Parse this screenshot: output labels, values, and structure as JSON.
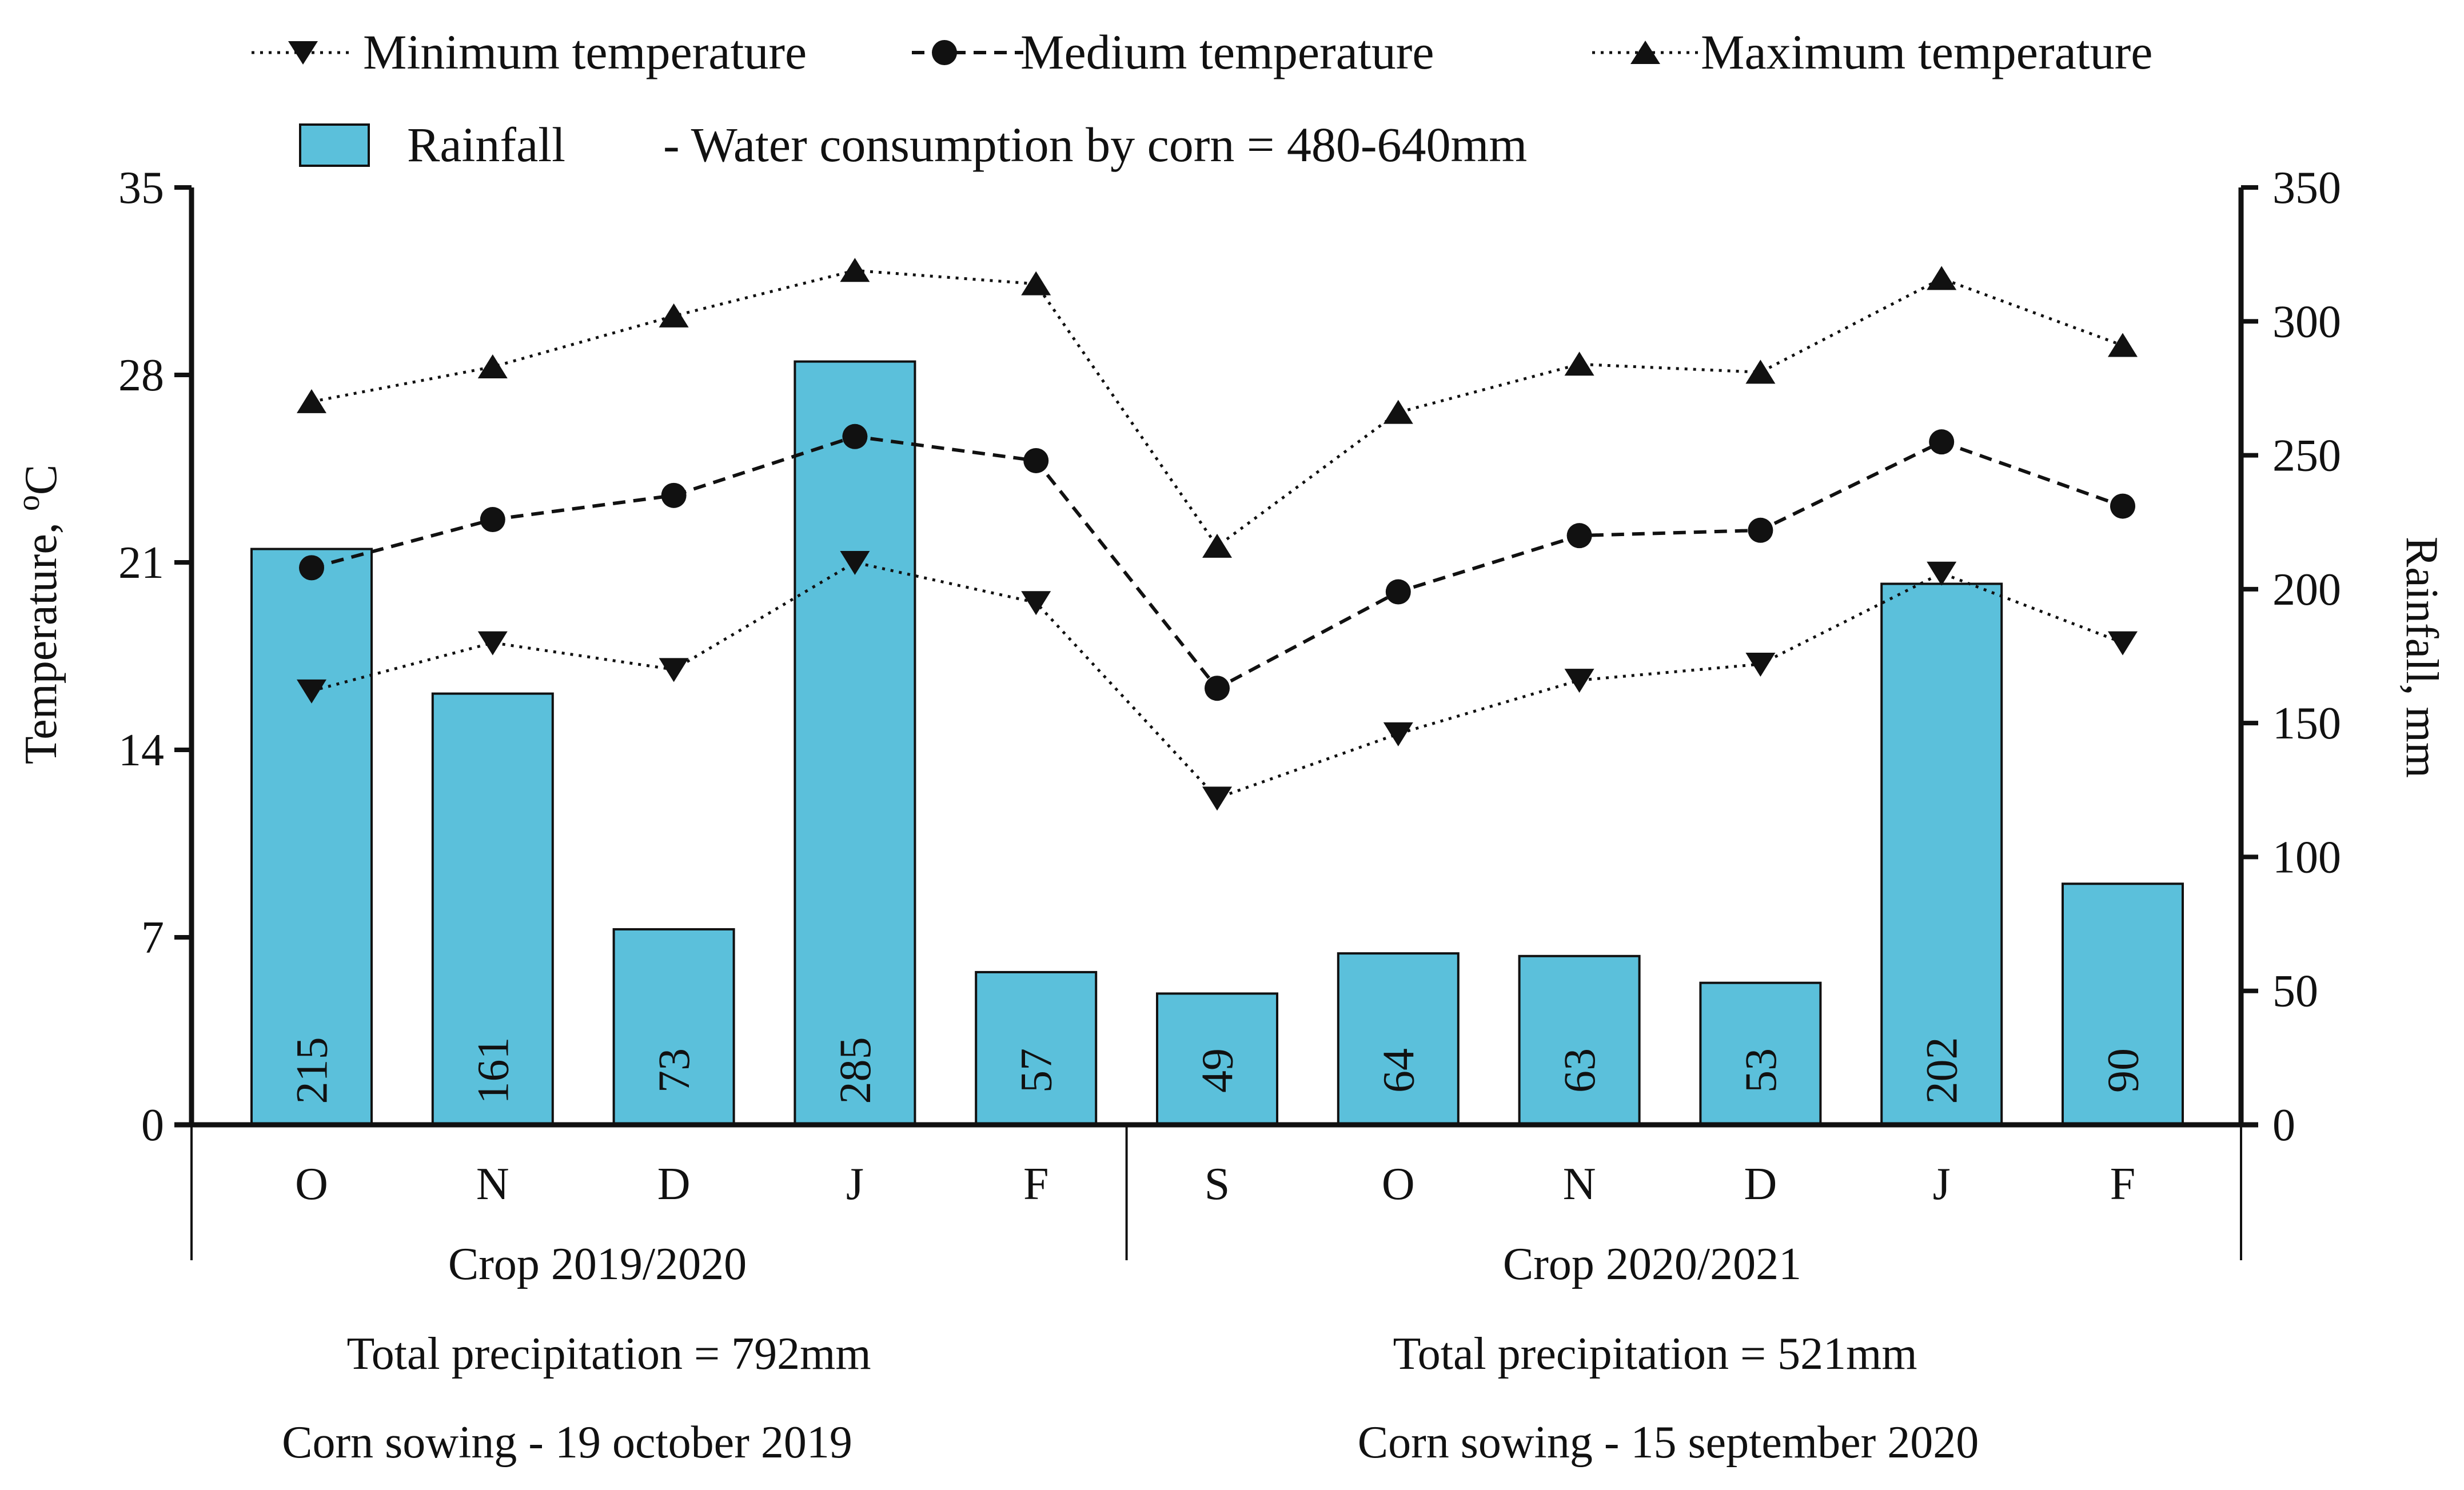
{
  "chart_data": {
    "type": "bar",
    "legend": {
      "min_label": "Minimum temperature",
      "med_label": "Medium temperature",
      "max_label": "Maximum temperature",
      "rain_label": "Rainfall",
      "water_note": "- Water consumption by corn = 480-640mm"
    },
    "y_left": {
      "label_main": "Temperature, ",
      "label_sup": "o",
      "label_unit": "C",
      "ylim": [
        0,
        35
      ],
      "ticks": [
        "0",
        "7",
        "14",
        "21",
        "28",
        "35"
      ]
    },
    "y_right": {
      "label": "Rainfall, mm",
      "ylim": [
        0,
        350
      ],
      "ticks": [
        "0",
        "50",
        "100",
        "150",
        "200",
        "250",
        "300",
        "350"
      ]
    },
    "categories": [
      "O",
      "N",
      "D",
      "J",
      "F",
      "S",
      "O",
      "N",
      "D",
      "J",
      "F"
    ],
    "groups": [
      {
        "label": "Crop 2019/2020",
        "precipitation": "Total precipitation = 792mm",
        "sowing": "Corn sowing - 19 october 2019"
      },
      {
        "label": "Crop 2020/2021",
        "precipitation": "Total precipitation = 521mm",
        "sowing": "Corn sowing - 15 september 2020"
      }
    ],
    "series": [
      {
        "name": "Rainfall",
        "type": "bar",
        "axis": "right",
        "color": "#5bc0db",
        "values": [
          215,
          161,
          73,
          285,
          57,
          49,
          64,
          63,
          53,
          202,
          90
        ],
        "labels": [
          "215",
          "161",
          "73",
          "285",
          "57",
          "49",
          "64",
          "63",
          "53",
          "202",
          "90"
        ]
      },
      {
        "name": "Minimum temperature",
        "type": "line",
        "axis": "left",
        "marker": "triangle-down",
        "dash": "dotted",
        "values": [
          16.2,
          18.0,
          17.0,
          21.0,
          19.5,
          12.2,
          14.6,
          16.6,
          17.2,
          20.6,
          18.0
        ]
      },
      {
        "name": "Medium temperature",
        "type": "line",
        "axis": "left",
        "marker": "circle",
        "dash": "dashed",
        "values": [
          20.8,
          22.6,
          23.5,
          25.7,
          24.8,
          16.3,
          19.9,
          22.0,
          22.2,
          25.5,
          23.1
        ]
      },
      {
        "name": "Maximum temperature",
        "type": "line",
        "axis": "left",
        "marker": "triangle-up",
        "dash": "dotted",
        "values": [
          27.0,
          28.3,
          30.2,
          31.9,
          31.4,
          21.6,
          26.6,
          28.4,
          28.1,
          31.6,
          29.1
        ]
      }
    ]
  }
}
